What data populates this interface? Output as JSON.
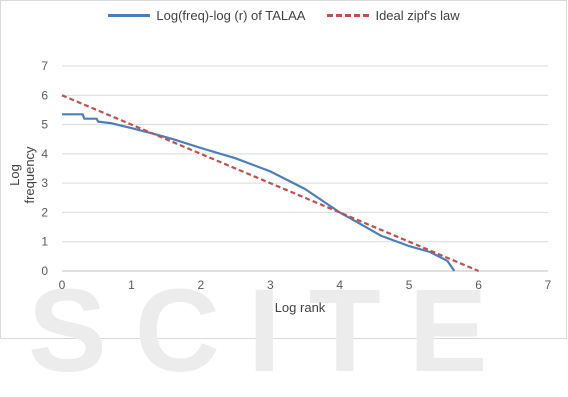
{
  "watermark": "SCITE",
  "chart_data": {
    "type": "line",
    "title": "",
    "xlabel": "Log rank",
    "ylabel": "Log  frequency",
    "xlim": [
      0,
      7
    ],
    "ylim": [
      0,
      7
    ],
    "xticks": [
      0,
      1,
      2,
      3,
      4,
      5,
      6,
      7
    ],
    "yticks": [
      0,
      1,
      2,
      3,
      4,
      5,
      6,
      7
    ],
    "grid": "horizontal",
    "legend": "top",
    "series": [
      {
        "name": "Log(freq)-log (r) of TALAA",
        "color": "#4a7ebb",
        "style": "solid",
        "points": [
          [
            0,
            5.35
          ],
          [
            0.3,
            5.35
          ],
          [
            0.32,
            5.2
          ],
          [
            0.5,
            5.2
          ],
          [
            0.52,
            5.1
          ],
          [
            0.7,
            5.05
          ],
          [
            1.0,
            4.88
          ],
          [
            1.3,
            4.7
          ],
          [
            1.6,
            4.5
          ],
          [
            2.0,
            4.2
          ],
          [
            2.5,
            3.85
          ],
          [
            3.0,
            3.4
          ],
          [
            3.5,
            2.8
          ],
          [
            4.0,
            2.0
          ],
          [
            4.3,
            1.6
          ],
          [
            4.6,
            1.2
          ],
          [
            5.0,
            0.85
          ],
          [
            5.3,
            0.65
          ],
          [
            5.55,
            0.35
          ],
          [
            5.65,
            0.0
          ]
        ]
      },
      {
        "name": "Ideal zipf's law",
        "color": "#c0504d",
        "style": "dashed",
        "points": [
          [
            0,
            6
          ],
          [
            6,
            0
          ]
        ]
      }
    ]
  }
}
